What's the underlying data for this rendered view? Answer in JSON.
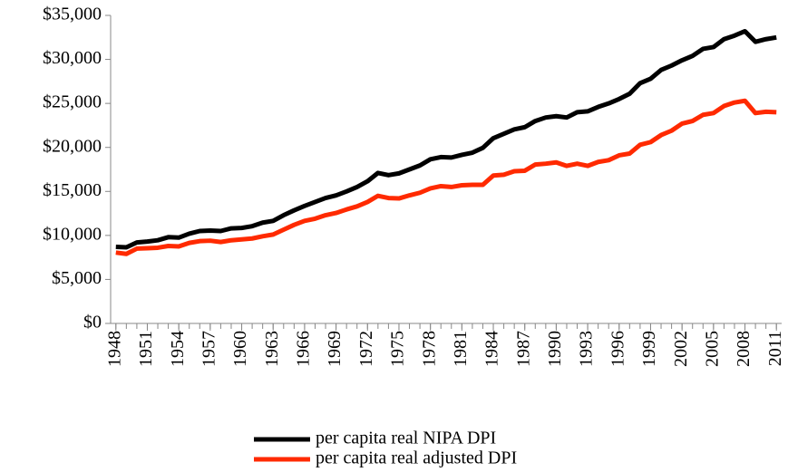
{
  "chart_data": {
    "type": "line",
    "x": [
      1948,
      1949,
      1950,
      1951,
      1952,
      1953,
      1954,
      1955,
      1956,
      1957,
      1958,
      1959,
      1960,
      1961,
      1962,
      1963,
      1964,
      1965,
      1966,
      1967,
      1968,
      1969,
      1970,
      1971,
      1972,
      1973,
      1974,
      1975,
      1976,
      1977,
      1978,
      1979,
      1980,
      1981,
      1982,
      1983,
      1984,
      1985,
      1986,
      1987,
      1988,
      1989,
      1990,
      1991,
      1992,
      1993,
      1994,
      1995,
      1996,
      1997,
      1998,
      1999,
      2000,
      2001,
      2002,
      2003,
      2004,
      2005,
      2006,
      2007,
      2008,
      2009,
      2010,
      2011
    ],
    "series": [
      {
        "name": "per capita real NIPA DPI",
        "color": "#000000",
        "values": [
          8700,
          8650,
          9200,
          9300,
          9450,
          9800,
          9750,
          10200,
          10500,
          10550,
          10500,
          10800,
          10850,
          11050,
          11450,
          11650,
          12300,
          12850,
          13350,
          13800,
          14250,
          14550,
          15000,
          15500,
          16150,
          17100,
          16850,
          17050,
          17500,
          17950,
          18650,
          18900,
          18850,
          19150,
          19400,
          19950,
          21050,
          21550,
          22050,
          22300,
          23000,
          23400,
          23550,
          23400,
          24000,
          24100,
          24600,
          25000,
          25500,
          26100,
          27300,
          27800,
          28800,
          29300,
          29900,
          30400,
          31200,
          31400,
          32300,
          32700,
          33200,
          32000,
          32300,
          32500
        ]
      },
      {
        "name": "per capita real adjusted DPI",
        "color": "#ff2a00",
        "values": [
          8050,
          7900,
          8500,
          8550,
          8600,
          8800,
          8750,
          9150,
          9350,
          9400,
          9250,
          9450,
          9550,
          9650,
          9900,
          10100,
          10650,
          11200,
          11650,
          11900,
          12300,
          12550,
          12950,
          13300,
          13800,
          14500,
          14250,
          14200,
          14550,
          14850,
          15350,
          15600,
          15500,
          15700,
          15750,
          15750,
          16800,
          16900,
          17300,
          17350,
          18050,
          18150,
          18300,
          17900,
          18150,
          17900,
          18350,
          18550,
          19100,
          19300,
          20300,
          20600,
          21400,
          21900,
          22700,
          23000,
          23700,
          23900,
          24700,
          25100,
          25300,
          23900,
          24050,
          24000
        ]
      }
    ],
    "xlim": [
      1947.5,
      2011.5
    ],
    "xticks": [
      1948,
      1951,
      1954,
      1957,
      1960,
      1963,
      1966,
      1969,
      1972,
      1975,
      1978,
      1981,
      1984,
      1987,
      1990,
      1993,
      1996,
      1999,
      2002,
      2005,
      2008,
      2011
    ],
    "ylim": [
      0,
      35000
    ],
    "yticks": [
      {
        "value": 0,
        "label": "$0"
      },
      {
        "value": 5000,
        "label": "$5,000"
      },
      {
        "value": 10000,
        "label": "$10,000"
      },
      {
        "value": 15000,
        "label": "$15,000"
      },
      {
        "value": 20000,
        "label": "$20,000"
      },
      {
        "value": 25000,
        "label": "$25,000"
      },
      {
        "value": 30000,
        "label": "$30,000"
      },
      {
        "value": 35000,
        "label": "$35,000"
      }
    ],
    "grid": false,
    "legend": "bottom"
  }
}
